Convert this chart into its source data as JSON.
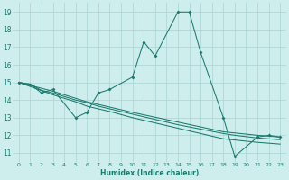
{
  "xlabel": "Humidex (Indice chaleur)",
  "bg_color": "#ceeeed",
  "grid_color": "#aad4d2",
  "line_color": "#1a7a6e",
  "xlim": [
    -0.5,
    23.5
  ],
  "ylim": [
    10.5,
    19.5
  ],
  "yticks": [
    11,
    12,
    13,
    14,
    15,
    16,
    17,
    18,
    19
  ],
  "xticks": [
    0,
    1,
    2,
    3,
    4,
    5,
    6,
    7,
    8,
    9,
    10,
    11,
    12,
    13,
    14,
    15,
    16,
    17,
    18,
    19,
    20,
    21,
    22,
    23
  ],
  "main_x": [
    0,
    1,
    2,
    3,
    5,
    6,
    7,
    8,
    10,
    11,
    12,
    14,
    15,
    16,
    18,
    19,
    21,
    22,
    23
  ],
  "main_y": [
    15.0,
    14.9,
    14.4,
    14.6,
    13.0,
    13.3,
    14.4,
    14.6,
    15.3,
    17.3,
    16.5,
    19.0,
    19.0,
    16.7,
    13.0,
    10.8,
    11.9,
    12.0,
    11.9
  ],
  "line1_x": [
    0,
    1,
    2,
    3,
    4,
    5,
    6,
    7,
    8,
    10,
    14,
    18,
    19,
    21,
    22,
    23
  ],
  "line1_y": [
    15.0,
    14.9,
    14.55,
    14.4,
    14.2,
    14.0,
    13.85,
    13.65,
    13.5,
    13.2,
    12.6,
    12.1,
    12.0,
    11.85,
    11.8,
    11.75
  ],
  "line2_x": [
    0,
    3,
    5,
    6,
    7,
    8,
    10,
    14,
    18,
    21,
    22,
    23
  ],
  "line2_y": [
    15.0,
    14.5,
    14.1,
    13.9,
    13.75,
    13.6,
    13.3,
    12.75,
    12.2,
    12.0,
    11.95,
    11.9
  ],
  "line3_x": [
    0,
    3,
    5,
    6,
    7,
    8,
    10,
    14,
    18,
    21,
    22,
    23
  ],
  "line3_y": [
    15.0,
    14.3,
    13.9,
    13.65,
    13.5,
    13.35,
    13.0,
    12.4,
    11.8,
    11.6,
    11.55,
    11.5
  ]
}
